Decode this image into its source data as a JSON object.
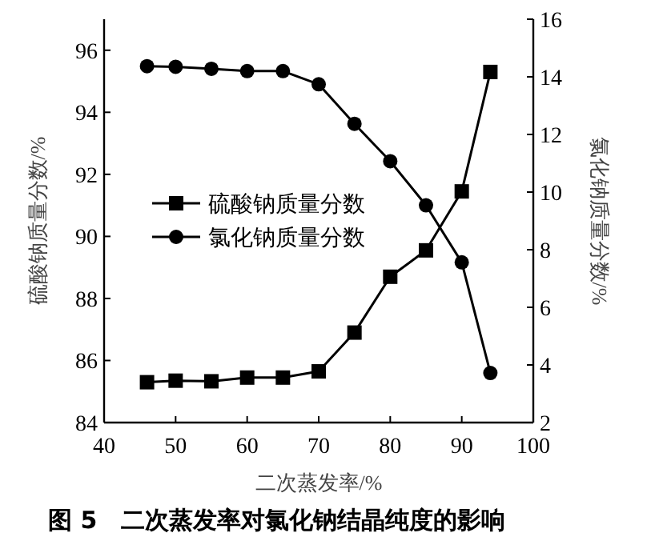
{
  "chart_data": {
    "type": "line",
    "title": "图 5　二次蒸发率对氯化钠结晶纯度的影响",
    "xlabel": "二次蒸发率/%",
    "ylabel": "硫酸钠质量分数/%",
    "y2label": "氯化钠质量分数/%",
    "x": [
      46,
      50,
      55,
      60,
      65,
      70,
      75,
      80,
      85,
      90,
      94
    ],
    "series": [
      {
        "name": "硫酸钠质量分数",
        "color": "#000000",
        "marker": "square",
        "values": [
          85.3,
          85.35,
          85.33,
          85.45,
          85.45,
          85.65,
          86.9,
          88.7,
          89.55,
          91.45,
          95.3
        ]
      },
      {
        "name": "氯化钠质量分数",
        "color": "#000000",
        "marker": "circle",
        "axis": "y2",
        "values": [
          14.37,
          14.35,
          14.28,
          14.2,
          14.2,
          13.74,
          12.37,
          11.07,
          9.54,
          7.56,
          3.72
        ]
      }
    ],
    "xlim": [
      40,
      100
    ],
    "xticks": [
      40,
      50,
      60,
      70,
      80,
      90,
      100
    ],
    "ylim": [
      84,
      97
    ],
    "yticks": [
      84,
      86,
      88,
      90,
      92,
      94,
      96
    ],
    "y2lim": [
      2,
      16
    ],
    "y2ticks": [
      2,
      4,
      6,
      8,
      10,
      12,
      14,
      16
    ],
    "legend": "left",
    "line_style": "solid"
  }
}
